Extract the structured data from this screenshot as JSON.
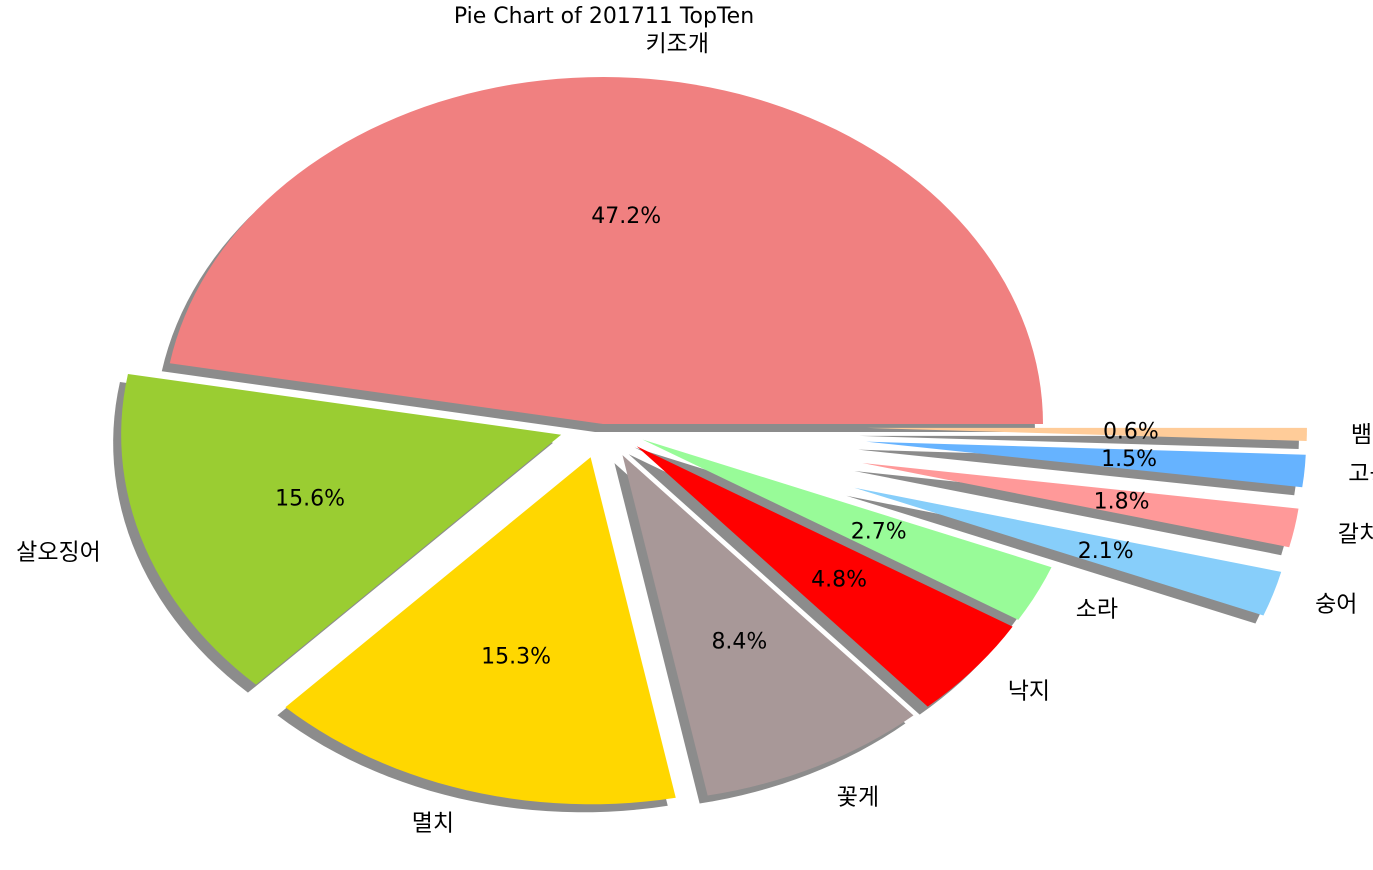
{
  "chart_data": {
    "type": "pie",
    "title": "Pie Chart of 201711 TopTen",
    "labels": [
      "키조개",
      "살오징어",
      "멸치",
      "꽃게",
      "낙지",
      "소라",
      "숭어",
      "갈치류",
      "고등어",
      "뱀장어"
    ],
    "values": [
      47.2,
      15.6,
      15.3,
      8.4,
      4.8,
      2.7,
      2.1,
      1.8,
      1.5,
      0.6
    ],
    "percent_labels": [
      "47.2%",
      "15.6%",
      "15.3%",
      "8.4%",
      "4.8%",
      "2.7%",
      "2.1%",
      "1.8%",
      "1.5%",
      "0.6%"
    ],
    "explode": [
      0.0,
      0.1,
      0.1,
      0.1,
      0.1,
      0.1,
      0.6,
      0.6,
      0.6,
      0.6
    ],
    "colors": [
      "#F08080",
      "#9ACD32",
      "#FFD700",
      "#A89898",
      "#FF0000",
      "#98FB98",
      "#87CEFA",
      "#FF9999",
      "#66B3FF",
      "#FFCC99"
    ],
    "start_angle": 0,
    "counterclockwise": true,
    "shadow": true,
    "legend": "none"
  }
}
